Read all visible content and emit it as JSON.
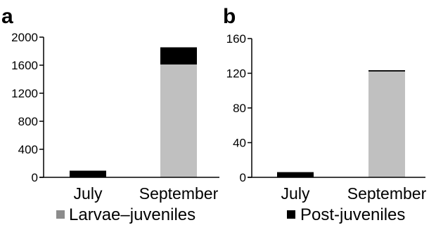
{
  "legend": {
    "items": [
      {
        "label": "Larvae–juveniles",
        "color": "#8c8c8c"
      },
      {
        "label": "Post-juveniles",
        "color": "#000000"
      }
    ]
  },
  "chart_data": [
    {
      "type": "bar",
      "stacked": true,
      "panel_label": "a",
      "categories": [
        "July",
        "September"
      ],
      "series": [
        {
          "name": "Larvae–juveniles",
          "values": [
            0,
            1610
          ],
          "color": "#c0c0c0"
        },
        {
          "name": "Post-juveniles",
          "values": [
            95,
            245
          ],
          "color": "#000000"
        }
      ],
      "ylim": [
        0,
        2000
      ],
      "yticks": [
        0,
        400,
        800,
        1200,
        1600,
        2000
      ],
      "title": "",
      "xlabel": "",
      "ylabel": "",
      "grid": false,
      "legend": "bottom"
    },
    {
      "type": "bar",
      "stacked": true,
      "panel_label": "b",
      "categories": [
        "July",
        "September"
      ],
      "series": [
        {
          "name": "Larvae–juveniles",
          "values": [
            0,
            122
          ],
          "color": "#c0c0c0"
        },
        {
          "name": "Post-juveniles",
          "values": [
            6,
            1.5
          ],
          "color": "#000000"
        }
      ],
      "ylim": [
        0,
        160
      ],
      "yticks": [
        0,
        40,
        80,
        120,
        160
      ],
      "title": "",
      "xlabel": "",
      "ylabel": "",
      "grid": false,
      "legend": "bottom"
    }
  ]
}
